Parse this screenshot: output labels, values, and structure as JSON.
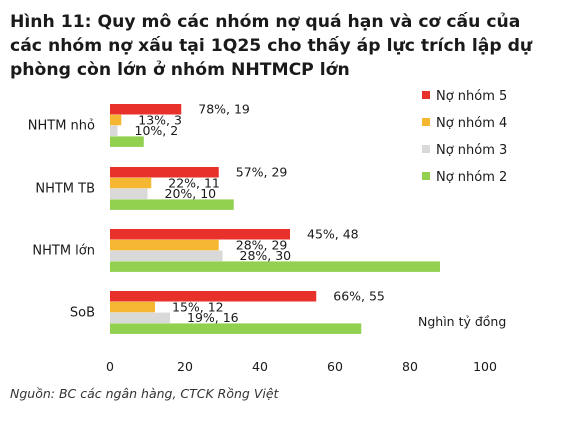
{
  "title": "Hình 11: Quy mô các nhóm nợ quá hạn và cơ cấu của các nhóm nợ xấu tại 1Q25 cho thấy áp lực trích lập dự phòng còn lớn ở nhóm NHTMCP lớn",
  "source": "Nguồn: BC các ngân hàng, CTCK Rồng Việt",
  "chart_data": {
    "type": "bar",
    "orientation": "horizontal",
    "categories": [
      "NHTM nhỏ",
      "NHTM TB",
      "NHTM lớn",
      "SoB"
    ],
    "series": [
      {
        "name": "Nợ nhóm 5",
        "color": "#e8312b",
        "values": [
          19,
          29,
          48,
          55
        ],
        "labels": [
          "78%, 19",
          "57%, 29",
          "45%, 48",
          "66%, 55"
        ]
      },
      {
        "name": "Nợ nhóm 4",
        "color": "#f5b731",
        "values": [
          3,
          11,
          29,
          12
        ],
        "labels": [
          "13%, 3",
          "22%, 11",
          "28%, 29",
          "15%, 12"
        ]
      },
      {
        "name": "Nợ nhóm 3",
        "color": "#d9d9d9",
        "values": [
          2,
          10,
          30,
          16
        ],
        "labels": [
          "10%, 2",
          "20%, 10",
          "28%, 30",
          "19%, 16"
        ]
      },
      {
        "name": "Nợ nhóm 2",
        "color": "#92d050",
        "values": [
          9,
          33,
          88,
          67
        ],
        "labels": [
          "",
          "",
          "",
          ""
        ]
      }
    ],
    "xlim": [
      0,
      100
    ],
    "xticks": [
      0,
      20,
      40,
      60,
      80,
      100
    ],
    "unit_label": "Nghìn tỷ đồng",
    "legend_position": "right",
    "grid": false
  }
}
